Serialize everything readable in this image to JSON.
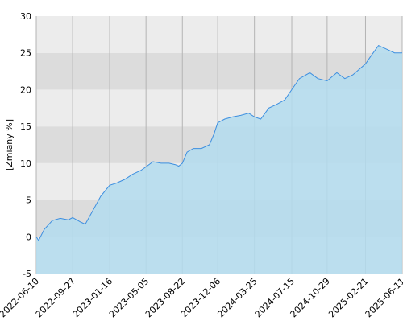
{
  "chart_data": {
    "type": "area",
    "y_label": "[Zmiany %]",
    "x": [
      "2022-06-10",
      "2022-06-17",
      "2022-07-04",
      "2022-07-28",
      "2022-08-21",
      "2022-09-14",
      "2022-09-27",
      "2022-10-21",
      "2022-11-04",
      "2022-11-26",
      "2022-12-20",
      "2023-01-16",
      "2023-02-06",
      "2023-03-02",
      "2023-03-26",
      "2023-04-19",
      "2023-05-05",
      "2023-05-26",
      "2023-06-19",
      "2023-07-13",
      "2023-08-01",
      "2023-08-11",
      "2023-08-22",
      "2023-09-05",
      "2023-09-24",
      "2023-10-18",
      "2023-11-11",
      "2023-11-25",
      "2023-12-06",
      "2023-12-27",
      "2024-01-20",
      "2024-02-13",
      "2024-03-08",
      "2024-03-25",
      "2024-04-13",
      "2024-05-07",
      "2024-05-31",
      "2024-06-24",
      "2024-07-15",
      "2024-08-07",
      "2024-09-07",
      "2024-10-01",
      "2024-10-29",
      "2024-11-27",
      "2024-12-21",
      "2025-01-14",
      "2025-02-21",
      "2025-03-08",
      "2025-04-01",
      "2025-04-25",
      "2025-05-19",
      "2025-06-11"
    ],
    "values": [
      0,
      -0.5,
      1,
      2.2,
      2.5,
      2.3,
      2.6,
      2,
      1.7,
      3.5,
      5.5,
      7,
      7.3,
      7.8,
      8.5,
      9,
      9.5,
      10.2,
      10,
      10,
      9.8,
      9.6,
      10,
      11.5,
      12,
      12,
      12.5,
      14,
      15.5,
      16,
      16.3,
      16.5,
      16.8,
      16.3,
      16,
      17.5,
      18,
      18.6,
      20,
      21.5,
      22.3,
      21.5,
      21.2,
      22.3,
      21.5,
      22,
      23.5,
      24.5,
      26,
      25.5,
      25,
      25
    ],
    "line_color": "#3d8fe0",
    "fill_color": "#b3dcee",
    "xlim": [
      "2022-06-10",
      "2025-06-11"
    ],
    "xticks": [
      "2022-06-10",
      "2022-09-27",
      "2023-01-16",
      "2023-05-05",
      "2023-08-22",
      "2023-12-06",
      "2024-03-25",
      "2024-07-15",
      "2024-10-29",
      "2025-02-21",
      "2025-06-11"
    ],
    "ylim": [
      -5,
      30
    ],
    "yticks": [
      -5,
      0,
      5,
      10,
      15,
      20,
      25,
      30
    ],
    "grid": true
  }
}
